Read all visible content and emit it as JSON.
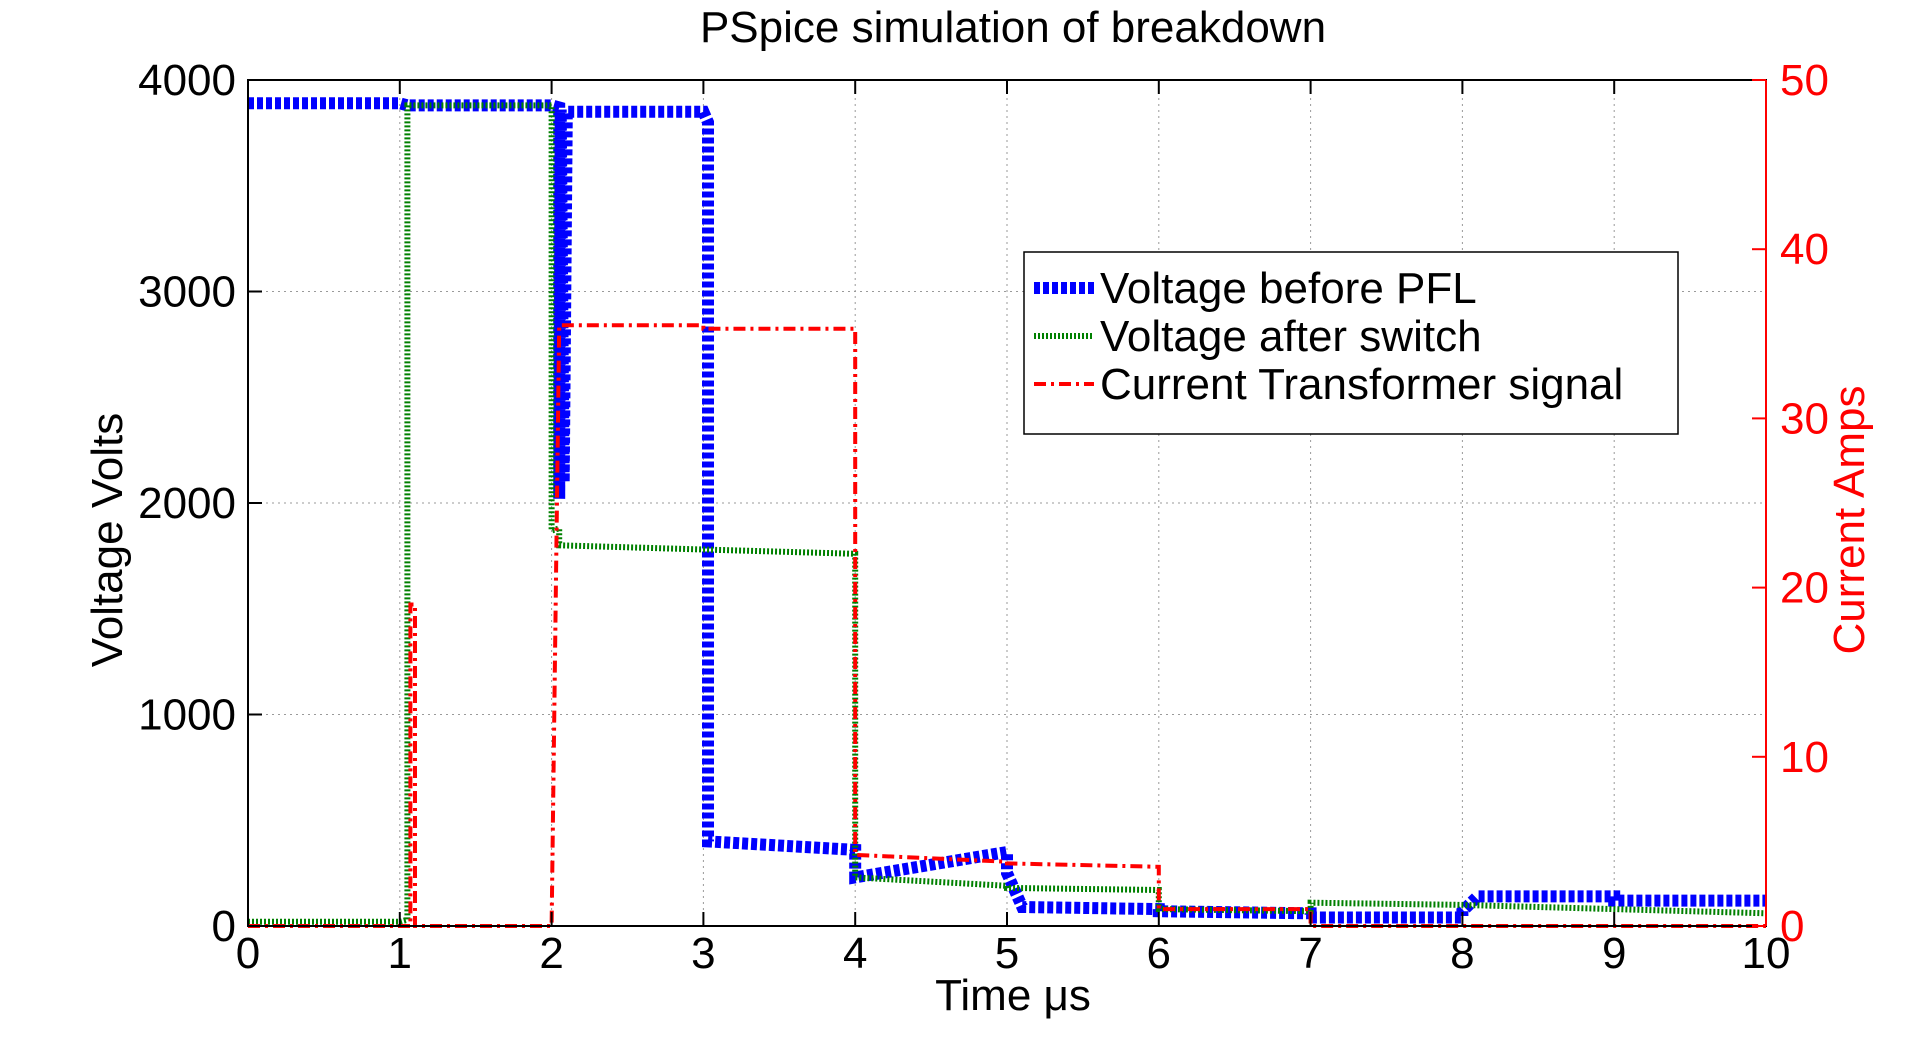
{
  "chart_data": {
    "type": "line",
    "title": "PSpice simulation of breakdown",
    "xlabel": "Time μs",
    "ylabel": "Voltage Volts",
    "ylabel_right": "Current Amps",
    "xlim": [
      0,
      10
    ],
    "ylim": [
      0,
      4000
    ],
    "ylim_right": [
      0,
      50
    ],
    "x_ticks": [
      "0",
      "1",
      "2",
      "3",
      "4",
      "5",
      "6",
      "7",
      "8",
      "9",
      "10"
    ],
    "y_ticks": [
      "0",
      "1000",
      "2000",
      "3000",
      "4000"
    ],
    "y_ticks_right": [
      "0",
      "10",
      "20",
      "30",
      "40",
      "50"
    ],
    "grid": true,
    "legend_position": "upper-right",
    "colors": {
      "right_axis": "#ff0000"
    },
    "series": [
      {
        "name": "Voltage before PFL",
        "axis": "left",
        "color": "#0000ff",
        "style": "dotted-thick",
        "x": [
          0,
          1.0,
          1.05,
          2.0,
          2.05,
          2.05,
          2.06,
          2.08,
          2.1,
          2.1,
          3.0,
          3.0,
          3.03,
          3.03,
          4.0,
          4.0,
          5.0,
          5.0,
          5.1,
          6.0,
          6.0,
          7.0,
          7.0,
          8.0,
          8.0,
          8.1,
          9.0,
          9.0,
          10.0
        ],
        "y": [
          3890,
          3890,
          3880,
          3880,
          3870,
          2020,
          3860,
          2100,
          3850,
          3850,
          3850,
          3850,
          3800,
          400,
          360,
          230,
          350,
          250,
          90,
          80,
          70,
          60,
          40,
          40,
          70,
          140,
          140,
          120,
          120
        ]
      },
      {
        "name": "Voltage after switch",
        "axis": "left",
        "color": "#008000",
        "style": "dotted",
        "x": [
          0,
          1.0,
          1.05,
          1.05,
          2.0,
          2.0,
          2.05,
          2.05,
          3.0,
          3.0,
          4.0,
          4.0,
          5.0,
          5.0,
          6.0,
          6.0,
          7.0,
          7.0,
          8.0,
          8.0,
          9.0,
          9.0,
          10.0
        ],
        "y": [
          20,
          20,
          30,
          3880,
          3880,
          1870,
          1880,
          1800,
          1780,
          1780,
          1760,
          230,
          190,
          180,
          170,
          80,
          70,
          110,
          100,
          100,
          80,
          80,
          60
        ]
      },
      {
        "name": "Current Transformer signal",
        "axis": "right",
        "color": "#ff0000",
        "style": "dash-dot",
        "x": [
          0,
          1.0,
          1.07,
          1.07,
          1.1,
          1.1,
          2.0,
          2.0,
          2.05,
          2.05,
          3.0,
          3.0,
          4.0,
          4.0,
          5.0,
          5.0,
          6.0,
          6.0,
          7.0,
          7.0,
          8.0,
          8.0,
          10.0
        ],
        "y": [
          0,
          0,
          0,
          19,
          19,
          0,
          0,
          0,
          35.5,
          35.5,
          35.5,
          35.3,
          35.3,
          4.2,
          3.8,
          3.7,
          3.5,
          1.0,
          1.0,
          0,
          0,
          0,
          0
        ]
      }
    ]
  }
}
